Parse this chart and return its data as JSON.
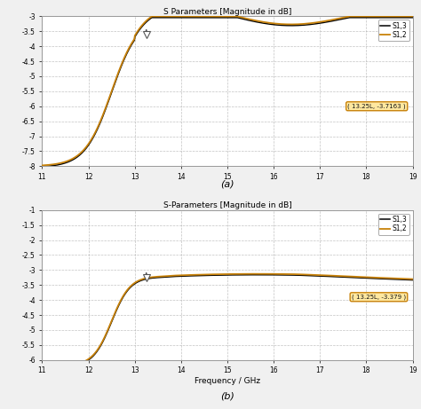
{
  "title_a": "S Parameters [Magnitude in dB]",
  "title_b": "S-Parameters [Magnitude in dB]",
  "xlabel": "Frequency / GHz",
  "x_min": 11,
  "x_max": 19,
  "x_ticks": [
    11,
    12,
    13,
    14,
    15,
    16,
    17,
    18,
    19
  ],
  "subplot_a": {
    "y_min": -8,
    "y_max": -3,
    "y_ticks": [
      -3,
      -3.5,
      -4,
      -4.5,
      -5,
      -5.5,
      -6,
      -6.5,
      -7,
      -7.5,
      -8
    ],
    "annotation": "( 13.25L, -3.7163 )",
    "marker_x": 13.25,
    "marker_y": -3.6,
    "label": "(a)"
  },
  "subplot_b": {
    "y_min": -6,
    "y_max": -1,
    "y_ticks": [
      -1,
      -1.5,
      -2,
      -2.5,
      -3,
      -3.5,
      -4,
      -4.5,
      -5,
      -5.5,
      -6
    ],
    "annotation": "( 13.25L, -3.379 )",
    "marker_x": 13.25,
    "marker_y": -3.25,
    "label": "(b)"
  },
  "legend_s12_color": "#c8820a",
  "legend_s13_color": "#000000",
  "legend_s12_label": "S1,2",
  "legend_s13_label": "S1,3",
  "grid_color": "#aaaaaa",
  "bg_color": "#ffffff",
  "annotation_bg": "#ffe8a0",
  "annotation_border": "#c8820a",
  "fig_bg": "#f0f0f0"
}
